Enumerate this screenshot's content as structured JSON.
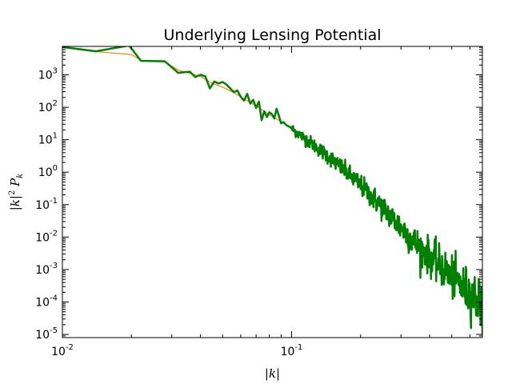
{
  "chart_data": {
    "type": "line",
    "title": "Underlying Lensing Potential",
    "xlabel": "|k|",
    "ylabel": "|k|² P_k",
    "xscale": "log",
    "yscale": "log",
    "xlim": [
      0.01,
      0.68
    ],
    "ylim": [
      8e-06,
      7500
    ],
    "grid": false,
    "legend": "none",
    "x_ticks": [
      {
        "value": 0.01,
        "base": "10",
        "exp": "-2"
      },
      {
        "value": 0.1,
        "base": "10",
        "exp": "-1"
      }
    ],
    "y_ticks": [
      {
        "value": 1000,
        "base": "10",
        "exp": "3"
      },
      {
        "value": 100,
        "base": "10",
        "exp": "2"
      },
      {
        "value": 10,
        "base": "10",
        "exp": "1"
      },
      {
        "value": 1,
        "base": "10",
        "exp": "0"
      },
      {
        "value": 0.1,
        "base": "10",
        "exp": "-1"
      },
      {
        "value": 0.01,
        "base": "10",
        "exp": "-2"
      },
      {
        "value": 0.001,
        "base": "10",
        "exp": "-3"
      },
      {
        "value": 0.0001,
        "base": "10",
        "exp": "-4"
      },
      {
        "value": 1e-05,
        "base": "10",
        "exp": "-5"
      }
    ],
    "series": [
      {
        "color": "#ff7f0e",
        "linewidth": 1.2,
        "x": [
          0.01,
          0.014,
          0.02,
          0.022,
          0.028,
          0.032,
          0.036,
          0.04,
          0.045,
          0.05,
          0.055,
          0.06,
          0.065,
          0.07,
          0.08,
          0.09,
          0.1,
          0.12,
          0.15,
          0.2,
          0.25,
          0.3,
          0.35,
          0.4,
          0.45,
          0.5,
          0.55,
          0.6,
          0.68
        ],
        "y": [
          7000,
          5200,
          4200,
          2800,
          2500,
          1400,
          1100,
          900,
          550,
          420,
          300,
          210,
          150,
          110,
          60,
          36,
          22,
          8.5,
          2.5,
          0.4,
          0.08,
          0.02,
          0.006,
          0.0025,
          0.0012,
          0.0006,
          0.00032,
          0.00018,
          0.0001
        ]
      },
      {
        "color": "#008000",
        "linewidth": 2.5,
        "x": [
          0.01,
          0.014,
          0.0195,
          0.02,
          0.022,
          0.028,
          0.032,
          0.036,
          0.038,
          0.04,
          0.042,
          0.044,
          0.046,
          0.048,
          0.05,
          0.052,
          0.054,
          0.056,
          0.058,
          0.06,
          0.062,
          0.064,
          0.066,
          0.068,
          0.07,
          0.072,
          0.074,
          0.076,
          0.078,
          0.08,
          0.082,
          0.084,
          0.086,
          0.088,
          0.09,
          0.092,
          0.095,
          0.1
        ],
        "y": [
          7200,
          5300,
          8000,
          6500,
          2700,
          2600,
          1150,
          1250,
          850,
          1000,
          900,
          380,
          620,
          540,
          600,
          500,
          380,
          290,
          330,
          210,
          160,
          260,
          130,
          170,
          95,
          150,
          40,
          75,
          50,
          70,
          62,
          45,
          90,
          55,
          32,
          35,
          28,
          23
        ],
        "noisy_tail": {
          "x_start": 0.1,
          "x_end": 0.68,
          "points": 520,
          "trend": [
            [
              0.1,
              22
            ],
            [
              0.12,
              8.5
            ],
            [
              0.15,
              2.5
            ],
            [
              0.2,
              0.4
            ],
            [
              0.25,
              0.08
            ],
            [
              0.3,
              0.02
            ],
            [
              0.35,
              0.006
            ],
            [
              0.4,
              0.0025
            ],
            [
              0.45,
              0.0012
            ],
            [
              0.5,
              0.0006
            ],
            [
              0.55,
              0.00032
            ],
            [
              0.6,
              0.00018
            ],
            [
              0.68,
              0.0001
            ]
          ],
          "scatter_dex": [
            [
              0.1,
              0.08
            ],
            [
              0.2,
              0.16
            ],
            [
              0.4,
              0.28
            ],
            [
              0.68,
              0.38
            ]
          ],
          "final_value": 1e-05
        }
      }
    ]
  }
}
